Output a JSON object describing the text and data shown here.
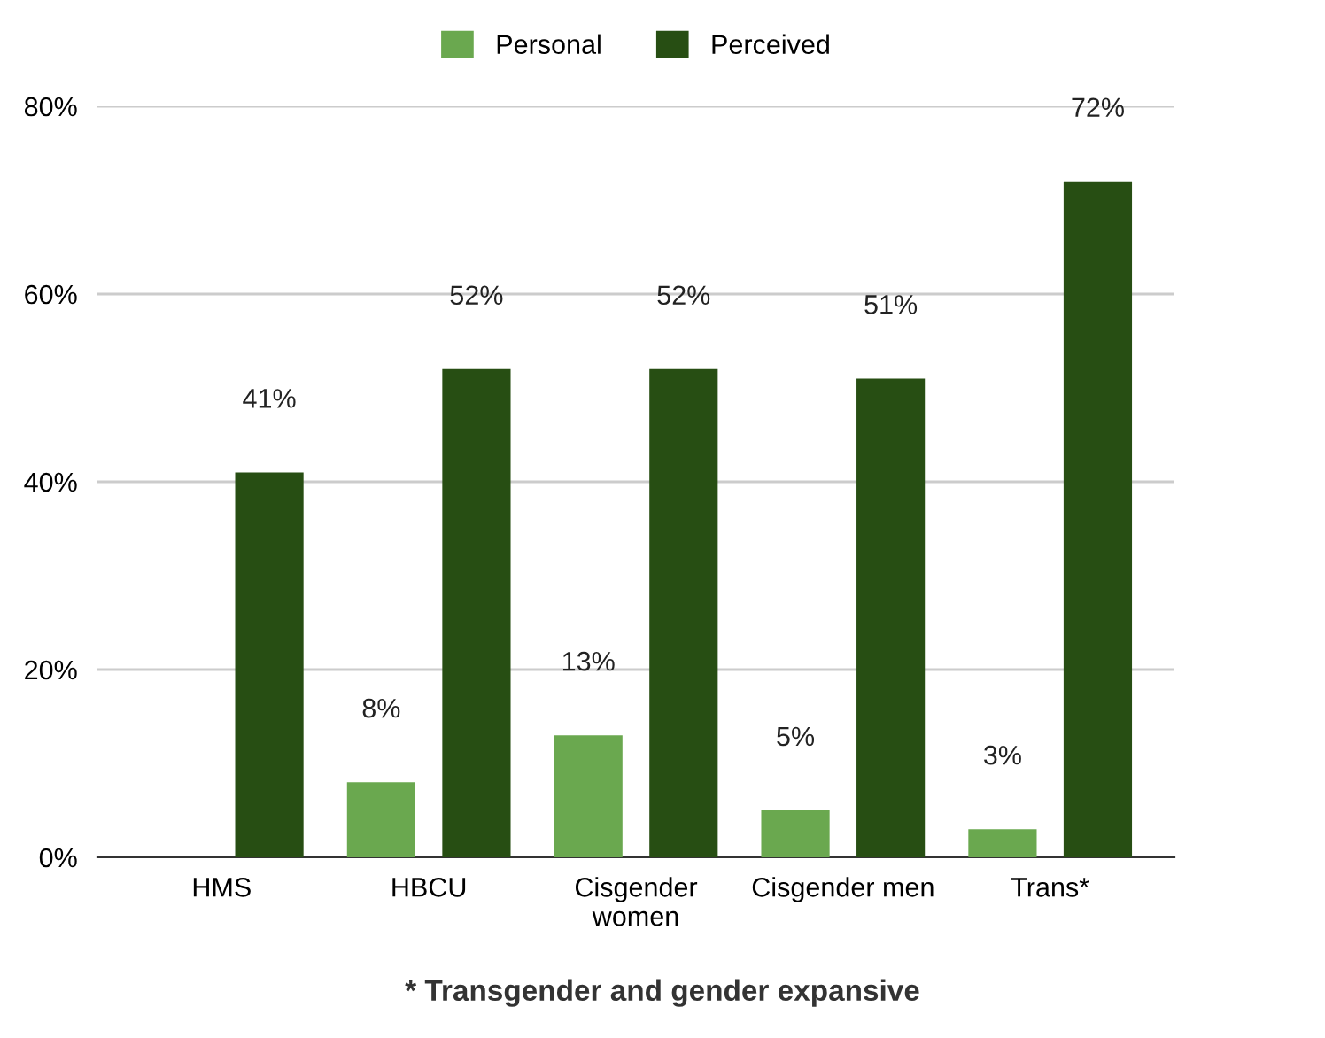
{
  "chart_data": {
    "type": "bar",
    "categories": [
      "HMS",
      "HBCU",
      "Cisgender\nwomen",
      "Cisgender men",
      "Trans*"
    ],
    "series": [
      {
        "name": "Personal",
        "color": "#6aa84f",
        "values": [
          null,
          8,
          13,
          5,
          3
        ],
        "value_labels": [
          null,
          "8%",
          "13%",
          "5%",
          "3%"
        ]
      },
      {
        "name": "Perceived",
        "color": "#274e13",
        "values": [
          41,
          52,
          52,
          51,
          72
        ],
        "value_labels": [
          "41%",
          "52%",
          "52%",
          "51%",
          "72%"
        ]
      }
    ],
    "ylim": [
      0,
      80
    ],
    "yticks": [
      {
        "value": 0,
        "label": "0%"
      },
      {
        "value": 20,
        "label": "20%"
      },
      {
        "value": 40,
        "label": "40%"
      },
      {
        "value": 60,
        "label": "60%"
      },
      {
        "value": 80,
        "label": "80%"
      }
    ],
    "grid": "y",
    "legend": "top",
    "annotations": [
      "* Transgender and gender expansive"
    ]
  }
}
